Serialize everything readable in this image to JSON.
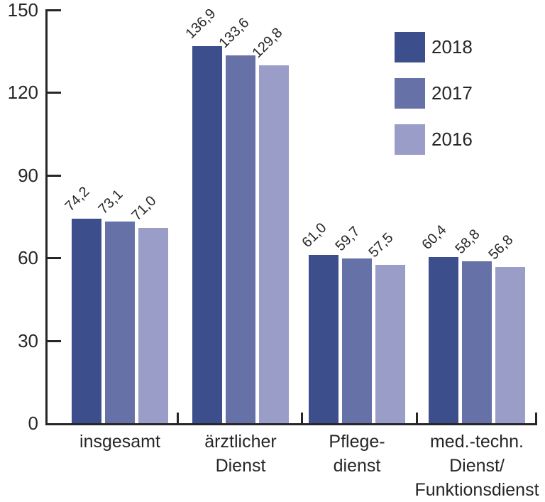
{
  "colors": {
    "series_2018": "#3d4e8c",
    "series_2017": "#6671a8",
    "series_2016": "#9a9dc8",
    "axis": "#262626",
    "text": "#262626",
    "background": "#ffffff"
  },
  "chart_data": {
    "type": "bar",
    "title": "",
    "categories": [
      [
        "insgesamt"
      ],
      [
        "ärztlicher",
        "Dienst"
      ],
      [
        "Pflege-",
        "dienst"
      ],
      [
        "med.-techn.",
        "Dienst/",
        "Funktionsdienst"
      ]
    ],
    "series": [
      {
        "name": "2018",
        "color": "#3d4e8c",
        "values": [
          74.2,
          136.9,
          61.0,
          60.4
        ],
        "value_labels": [
          "74,2",
          "136,9",
          "61,0",
          "60,4"
        ]
      },
      {
        "name": "2017",
        "color": "#6671a8",
        "values": [
          73.1,
          133.6,
          59.7,
          58.8
        ],
        "value_labels": [
          "73,1",
          "133,6",
          "59,7",
          "58,8"
        ]
      },
      {
        "name": "2016",
        "color": "#9a9dc8",
        "values": [
          71.0,
          129.8,
          57.5,
          56.8
        ],
        "value_labels": [
          "71,0",
          "129,8",
          "57,5",
          "56,8"
        ]
      }
    ],
    "y_axis": {
      "ticks": [
        0,
        30,
        60,
        90,
        120,
        150
      ],
      "tick_labels": [
        "0",
        "30",
        "60",
        "90",
        "120",
        "150"
      ],
      "range": [
        0,
        150
      ]
    },
    "legend": {
      "position": "top-right",
      "entries": [
        "2018",
        "2017",
        "2016"
      ]
    },
    "grid": false,
    "value_label_rotation_deg": -45,
    "decimal_separator": ","
  }
}
